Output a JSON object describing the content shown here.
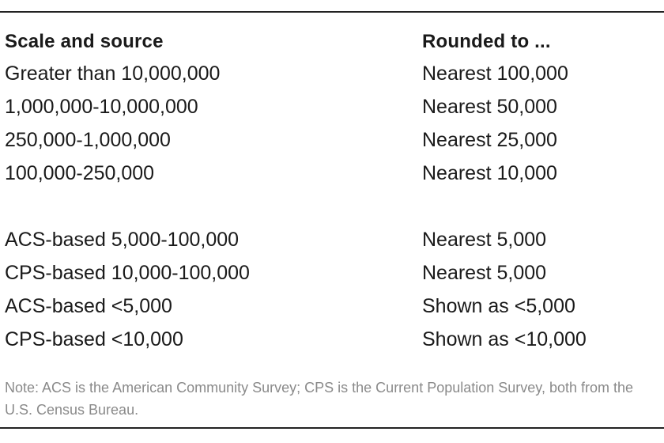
{
  "table": {
    "header": {
      "scale": "Scale and source",
      "rounded": "Rounded to ..."
    },
    "group1": [
      {
        "scale": "Greater than 10,000,000",
        "rounded": "Nearest 100,000"
      },
      {
        "scale": "1,000,000-10,000,000",
        "rounded": "Nearest 50,000"
      },
      {
        "scale": "250,000-1,000,000",
        "rounded": "Nearest 25,000"
      },
      {
        "scale": "100,000-250,000",
        "rounded": "Nearest 10,000"
      }
    ],
    "group2": [
      {
        "scale": "ACS-based 5,000-100,000",
        "rounded": "Nearest 5,000"
      },
      {
        "scale": "CPS-based 10,000-100,000",
        "rounded": "Nearest 5,000"
      },
      {
        "scale": "ACS-based <5,000",
        "rounded": "Shown as <5,000"
      },
      {
        "scale": "CPS-based <10,000",
        "rounded": "Shown as <10,000"
      }
    ]
  },
  "note": "Note: ACS is the American Community Survey; CPS is the Current Population Survey, both from the U.S. Census Bureau."
}
